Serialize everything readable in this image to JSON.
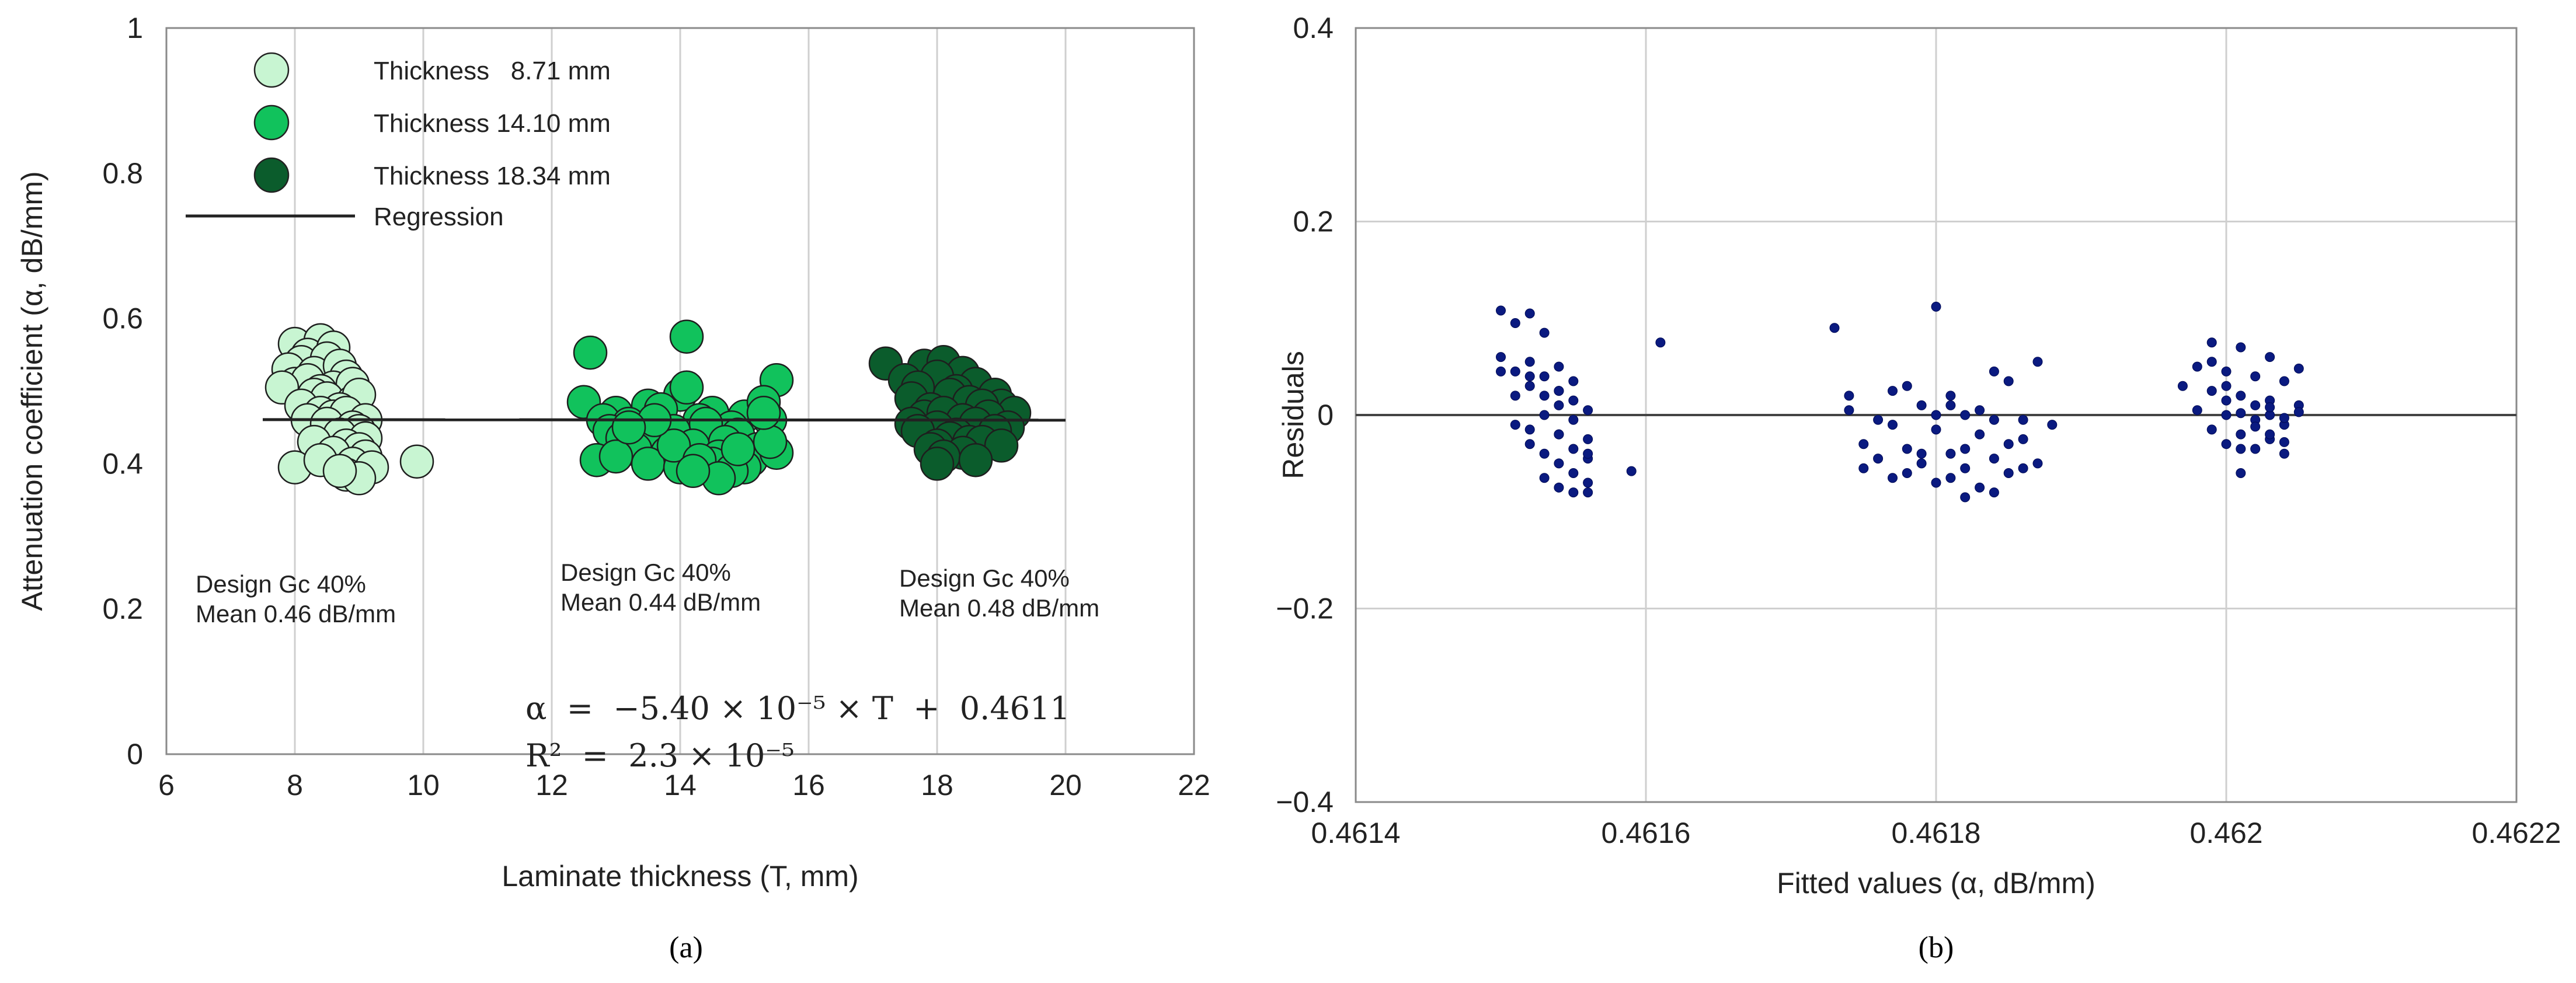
{
  "figure": {
    "panel_a_label": "(a)",
    "panel_b_label": "(b)"
  },
  "chart_data": [
    {
      "type": "scatter",
      "id": "a",
      "xlabel": {
        "prefix": "Laminate thickness (",
        "var": "T",
        "suffix": ", mm)"
      },
      "ylabel": {
        "prefix": "Attenuation coefficient (",
        "var": "α",
        "suffix": ", dB/mm)"
      },
      "xlim": [
        6,
        22
      ],
      "ylim": [
        0,
        1
      ],
      "x_ticks": [
        "6",
        "8",
        "10",
        "12",
        "14",
        "16",
        "18",
        "20",
        "22"
      ],
      "y_ticks": [
        "0",
        "0.2",
        "0.4",
        "0.6",
        "0.8",
        "1"
      ],
      "grid": "vertical",
      "legend": {
        "position": "top-left",
        "entries": [
          {
            "label": "Thickness   8.71 mm",
            "color": "#c8f5d2"
          },
          {
            "label": "Thickness 14.10 mm",
            "color": "#11c25c"
          },
          {
            "label": "Thickness 18.34 mm",
            "color": "#0b5c2c"
          },
          {
            "label": "Regression",
            "color": "#222222"
          }
        ]
      },
      "regression": {
        "slope": -5.4e-05,
        "intercept": 0.4611,
        "x_range": [
          7.5,
          20
        ]
      },
      "equation_line1": "α  =  −5.40 × 10⁻⁵ × T  +  0.4611",
      "equation_line2": "R²  =  2.3 × 10⁻⁵",
      "group_notes": [
        {
          "line1_prefix": "Design ",
          "line1_var": "Gc",
          "line1_suffix": " 40%",
          "line2": "Mean 0.46 dB/mm"
        },
        {
          "line1_prefix": "Design ",
          "line1_var": "Gc",
          "line1_suffix": " 40%",
          "line2": "Mean 0.44 dB/mm"
        },
        {
          "line1_prefix": "Design ",
          "line1_var": "Gc",
          "line1_suffix": " 40%",
          "line2": "Mean 0.48 dB/mm"
        }
      ],
      "series": [
        {
          "name": "Thickness 8.71 mm",
          "color": "#c8f5d2",
          "x": [
            8.0,
            8.4,
            8.2,
            8.6,
            8.1,
            8.5,
            7.9,
            8.3,
            8.7,
            8.8,
            8.0,
            8.2,
            8.6,
            8.9,
            8.4,
            7.8,
            8.3,
            8.5,
            8.9,
            9.0,
            8.1,
            8.7,
            8.4,
            8.6,
            8.8,
            9.1,
            8.2,
            8.5,
            8.9,
            9.0,
            8.7,
            9.1,
            8.3,
            8.8,
            9.0,
            8.6,
            9.1,
            8.9,
            8.0,
            9.2,
            8.4,
            8.8,
            9.0,
            8.7,
            9.9
          ],
          "y": [
            0.565,
            0.57,
            0.55,
            0.56,
            0.54,
            0.545,
            0.53,
            0.525,
            0.535,
            0.52,
            0.51,
            0.515,
            0.505,
            0.51,
            0.5,
            0.505,
            0.495,
            0.49,
            0.485,
            0.495,
            0.48,
            0.475,
            0.47,
            0.465,
            0.47,
            0.46,
            0.46,
            0.455,
            0.45,
            0.445,
            0.44,
            0.435,
            0.43,
            0.425,
            0.42,
            0.415,
            0.41,
            0.4,
            0.395,
            0.395,
            0.405,
            0.385,
            0.38,
            0.39,
            0.403
          ]
        },
        {
          "name": "Thickness 14.10 mm",
          "color": "#11c25c",
          "x": [
            12.6,
            14.1,
            12.5,
            13.0,
            13.5,
            14.0,
            14.5,
            15.0,
            15.5,
            12.8,
            13.2,
            13.7,
            14.3,
            14.8,
            15.3,
            12.9,
            13.4,
            13.9,
            14.4,
            14.9,
            15.4,
            13.1,
            13.6,
            14.2,
            14.7,
            15.2,
            13.3,
            13.8,
            14.6,
            15.1,
            12.7,
            13.5,
            14.0,
            14.5,
            15.0,
            15.5,
            13.0,
            13.9,
            14.3,
            14.8,
            15.4,
            13.6,
            14.1,
            14.6,
            14.2,
            14.9,
            15.3,
            13.2
          ],
          "y": [
            0.553,
            0.575,
            0.485,
            0.47,
            0.48,
            0.495,
            0.47,
            0.465,
            0.515,
            0.46,
            0.455,
            0.475,
            0.46,
            0.45,
            0.485,
            0.445,
            0.44,
            0.445,
            0.455,
            0.44,
            0.46,
            0.435,
            0.43,
            0.425,
            0.43,
            0.42,
            0.42,
            0.415,
            0.41,
            0.405,
            0.405,
            0.4,
            0.395,
            0.4,
            0.395,
            0.415,
            0.41,
            0.425,
            0.405,
            0.39,
            0.43,
            0.46,
            0.505,
            0.38,
            0.39,
            0.42,
            0.47,
            0.45
          ]
        },
        {
          "name": "Thickness 18.34 mm",
          "color": "#0b5c2c",
          "x": [
            17.2,
            17.8,
            18.1,
            18.4,
            17.5,
            18.0,
            18.6,
            17.7,
            18.3,
            18.9,
            17.6,
            18.2,
            18.5,
            19.0,
            17.9,
            18.7,
            19.2,
            17.8,
            18.1,
            18.4,
            18.8,
            17.6,
            18.0,
            18.6,
            19.1,
            17.7,
            18.3,
            18.9,
            18.2,
            18.5,
            18.0,
            18.7,
            17.9,
            18.4,
            19.0,
            18.1,
            18.6,
            18.0
          ],
          "y": [
            0.538,
            0.535,
            0.54,
            0.525,
            0.515,
            0.52,
            0.51,
            0.505,
            0.5,
            0.495,
            0.49,
            0.495,
            0.485,
            0.48,
            0.475,
            0.48,
            0.47,
            0.465,
            0.47,
            0.46,
            0.465,
            0.455,
            0.45,
            0.455,
            0.45,
            0.445,
            0.44,
            0.445,
            0.435,
            0.43,
            0.425,
            0.43,
            0.42,
            0.415,
            0.425,
            0.41,
            0.405,
            0.4
          ]
        }
      ]
    },
    {
      "type": "scatter",
      "id": "b",
      "xlabel": {
        "prefix": "Fitted values (",
        "var": "α",
        "suffix": ", dB/mm)"
      },
      "ylabel": {
        "prefix": "Residuals",
        "var": "",
        "suffix": ""
      },
      "xlim": [
        0.4614,
        0.4622
      ],
      "ylim": [
        -0.4,
        0.4
      ],
      "x_ticks": [
        "0.4614",
        "0.4616",
        "0.4618",
        "0.462",
        "0.4622"
      ],
      "y_ticks": [
        "−0.4",
        "−0.2",
        "0",
        "0.2",
        "0.4"
      ],
      "grid": "both",
      "zero_line": 0,
      "series": [
        {
          "name": "Residuals",
          "color": "#0a1a80",
          "x": [
            0.4615,
            0.46152,
            0.46151,
            0.46153,
            0.4615,
            0.46152,
            0.46154,
            0.46151,
            0.46153,
            0.46155,
            0.46152,
            0.46154,
            0.46151,
            0.46153,
            0.46155,
            0.4615,
            0.46152,
            0.46154,
            0.46156,
            0.46153,
            0.46155,
            0.46151,
            0.46154,
            0.46156,
            0.46152,
            0.46155,
            0.46153,
            0.46156,
            0.46154,
            0.46155,
            0.46153,
            0.46156,
            0.46154,
            0.46155,
            0.46156,
            0.46154,
            0.46159,
            0.46152,
            0.46154,
            0.46156,
            0.46173,
            0.46174,
            0.4618,
            0.46187,
            0.46175,
            0.46178,
            0.46181,
            0.46184,
            0.46176,
            0.46179,
            0.46182,
            0.46185,
            0.46188,
            0.46174,
            0.46177,
            0.4618,
            0.46183,
            0.46186,
            0.46175,
            0.46178,
            0.46181,
            0.46184,
            0.46187,
            0.46176,
            0.46179,
            0.46182,
            0.46185,
            0.46177,
            0.4618,
            0.46183,
            0.46186,
            0.46178,
            0.46181,
            0.46184,
            0.46179,
            0.46182,
            0.46185,
            0.4618,
            0.46183,
            0.46181,
            0.46184,
            0.46177,
            0.46186,
            0.46182,
            0.46161,
            0.46199,
            0.46201,
            0.46203,
            0.46198,
            0.462,
            0.46202,
            0.46204,
            0.46197,
            0.46199,
            0.46201,
            0.46203,
            0.46205,
            0.46198,
            0.462,
            0.46202,
            0.46204,
            0.46199,
            0.46201,
            0.46203,
            0.46205,
            0.462,
            0.46202,
            0.46204,
            0.46201,
            0.46203,
            0.46202,
            0.46204,
            0.462,
            0.46203,
            0.46201,
            0.46199,
            0.46205,
            0.46202,
            0.46204,
            0.46201,
            0.46203,
            0.462
          ],
          "y": [
            0.108,
            0.105,
            0.095,
            0.085,
            0.06,
            0.055,
            0.05,
            0.045,
            0.04,
            0.035,
            0.03,
            0.025,
            0.02,
            0.02,
            0.015,
            0.045,
            0.04,
            0.01,
            0.005,
            0.0,
            -0.005,
            -0.01,
            -0.02,
            -0.025,
            -0.03,
            -0.035,
            -0.04,
            -0.045,
            -0.05,
            -0.06,
            -0.065,
            -0.07,
            -0.075,
            -0.08,
            -0.08,
            -0.02,
            -0.058,
            -0.015,
            0.025,
            -0.04,
            0.09,
            0.02,
            0.112,
            0.055,
            -0.055,
            0.03,
            0.02,
            0.045,
            -0.005,
            0.01,
            0.0,
            0.035,
            -0.01,
            0.005,
            -0.01,
            -0.015,
            -0.02,
            -0.025,
            -0.03,
            -0.035,
            -0.04,
            -0.045,
            -0.05,
            -0.045,
            -0.05,
            -0.055,
            -0.06,
            -0.065,
            -0.07,
            -0.075,
            -0.055,
            -0.06,
            -0.065,
            -0.08,
            -0.04,
            -0.035,
            -0.03,
            0.0,
            0.005,
            0.01,
            -0.005,
            0.025,
            -0.005,
            -0.085,
            0.075,
            0.075,
            0.07,
            0.06,
            0.05,
            0.045,
            0.04,
            0.035,
            0.03,
            0.025,
            0.02,
            0.015,
            0.01,
            0.005,
            0.0,
            -0.005,
            -0.01,
            -0.015,
            -0.02,
            -0.025,
            0.003,
            -0.03,
            -0.035,
            -0.04,
            0.002,
            0.0,
            0.01,
            -0.003,
            0.015,
            -0.02,
            -0.035,
            0.055,
            0.048,
            -0.012,
            -0.028,
            -0.06,
            0.008,
            0.03
          ]
        }
      ]
    }
  ]
}
